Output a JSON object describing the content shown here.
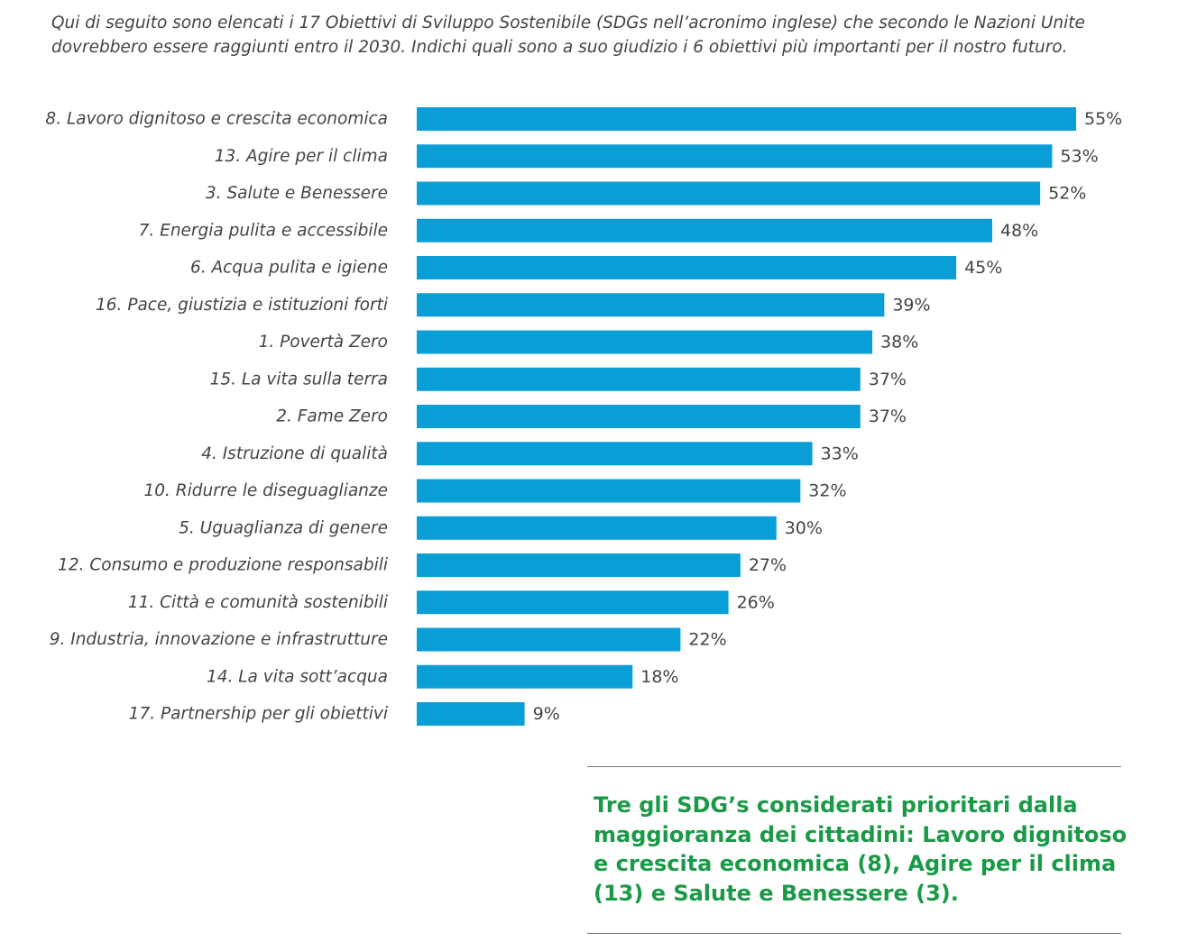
{
  "question": "Qui di seguito sono elencati i 17 Obiettivi di Sviluppo Sostenibile (SDGs nell’acronimo inglese) che secondo le Nazioni Unite dovrebbero essere raggiunti entro il 2030. Indichi quali sono a suo giudizio i 6 obiettivi più importanti per il nostro futuro.",
  "colors": {
    "bar": "#0a9ed6",
    "takeaway_text": "#1a9a47",
    "label_text": "#444444"
  },
  "chart_data": {
    "type": "bar",
    "orientation": "horizontal",
    "categories": [
      "8. Lavoro dignitoso e crescita economica",
      "13. Agire per il clima",
      "3. Salute e Benessere",
      "7. Energia pulita e accessibile",
      "6. Acqua pulita e igiene",
      "16. Pace, giustizia e istituzioni forti",
      "1. Povertà Zero",
      "15. La vita sulla terra",
      "2. Fame Zero",
      "4. Istruzione di qualità",
      "10. Ridurre le diseguaglianze",
      "5. Uguaglianza di genere",
      "12. Consumo e produzione responsabili",
      "11. Città e comunità sostenibili",
      "9. Industria, innovazione e infrastrutture",
      "14. La vita sott’acqua",
      "17. Partnership per gli obiettivi"
    ],
    "values": [
      55,
      53,
      52,
      48,
      45,
      39,
      38,
      37,
      37,
      33,
      32,
      30,
      27,
      26,
      22,
      18,
      9
    ],
    "value_labels": [
      "55%",
      "53%",
      "52%",
      "48%",
      "45%",
      "39%",
      "38%",
      "37%",
      "37%",
      "33%",
      "32%",
      "30%",
      "27%",
      "26%",
      "22%",
      "18%",
      "9%"
    ],
    "unit": "%",
    "xlim": [
      0,
      55
    ],
    "title": "",
    "xlabel": "",
    "ylabel": "",
    "grid": false,
    "legend": "none"
  },
  "takeaway": {
    "text": "Tre gli SDG’s considerati prioritari dalla maggioranza dei cittadini: Lavoro dignitoso e crescita economica (8), Agire per il clima (13) e Salute e Benessere (3)."
  }
}
